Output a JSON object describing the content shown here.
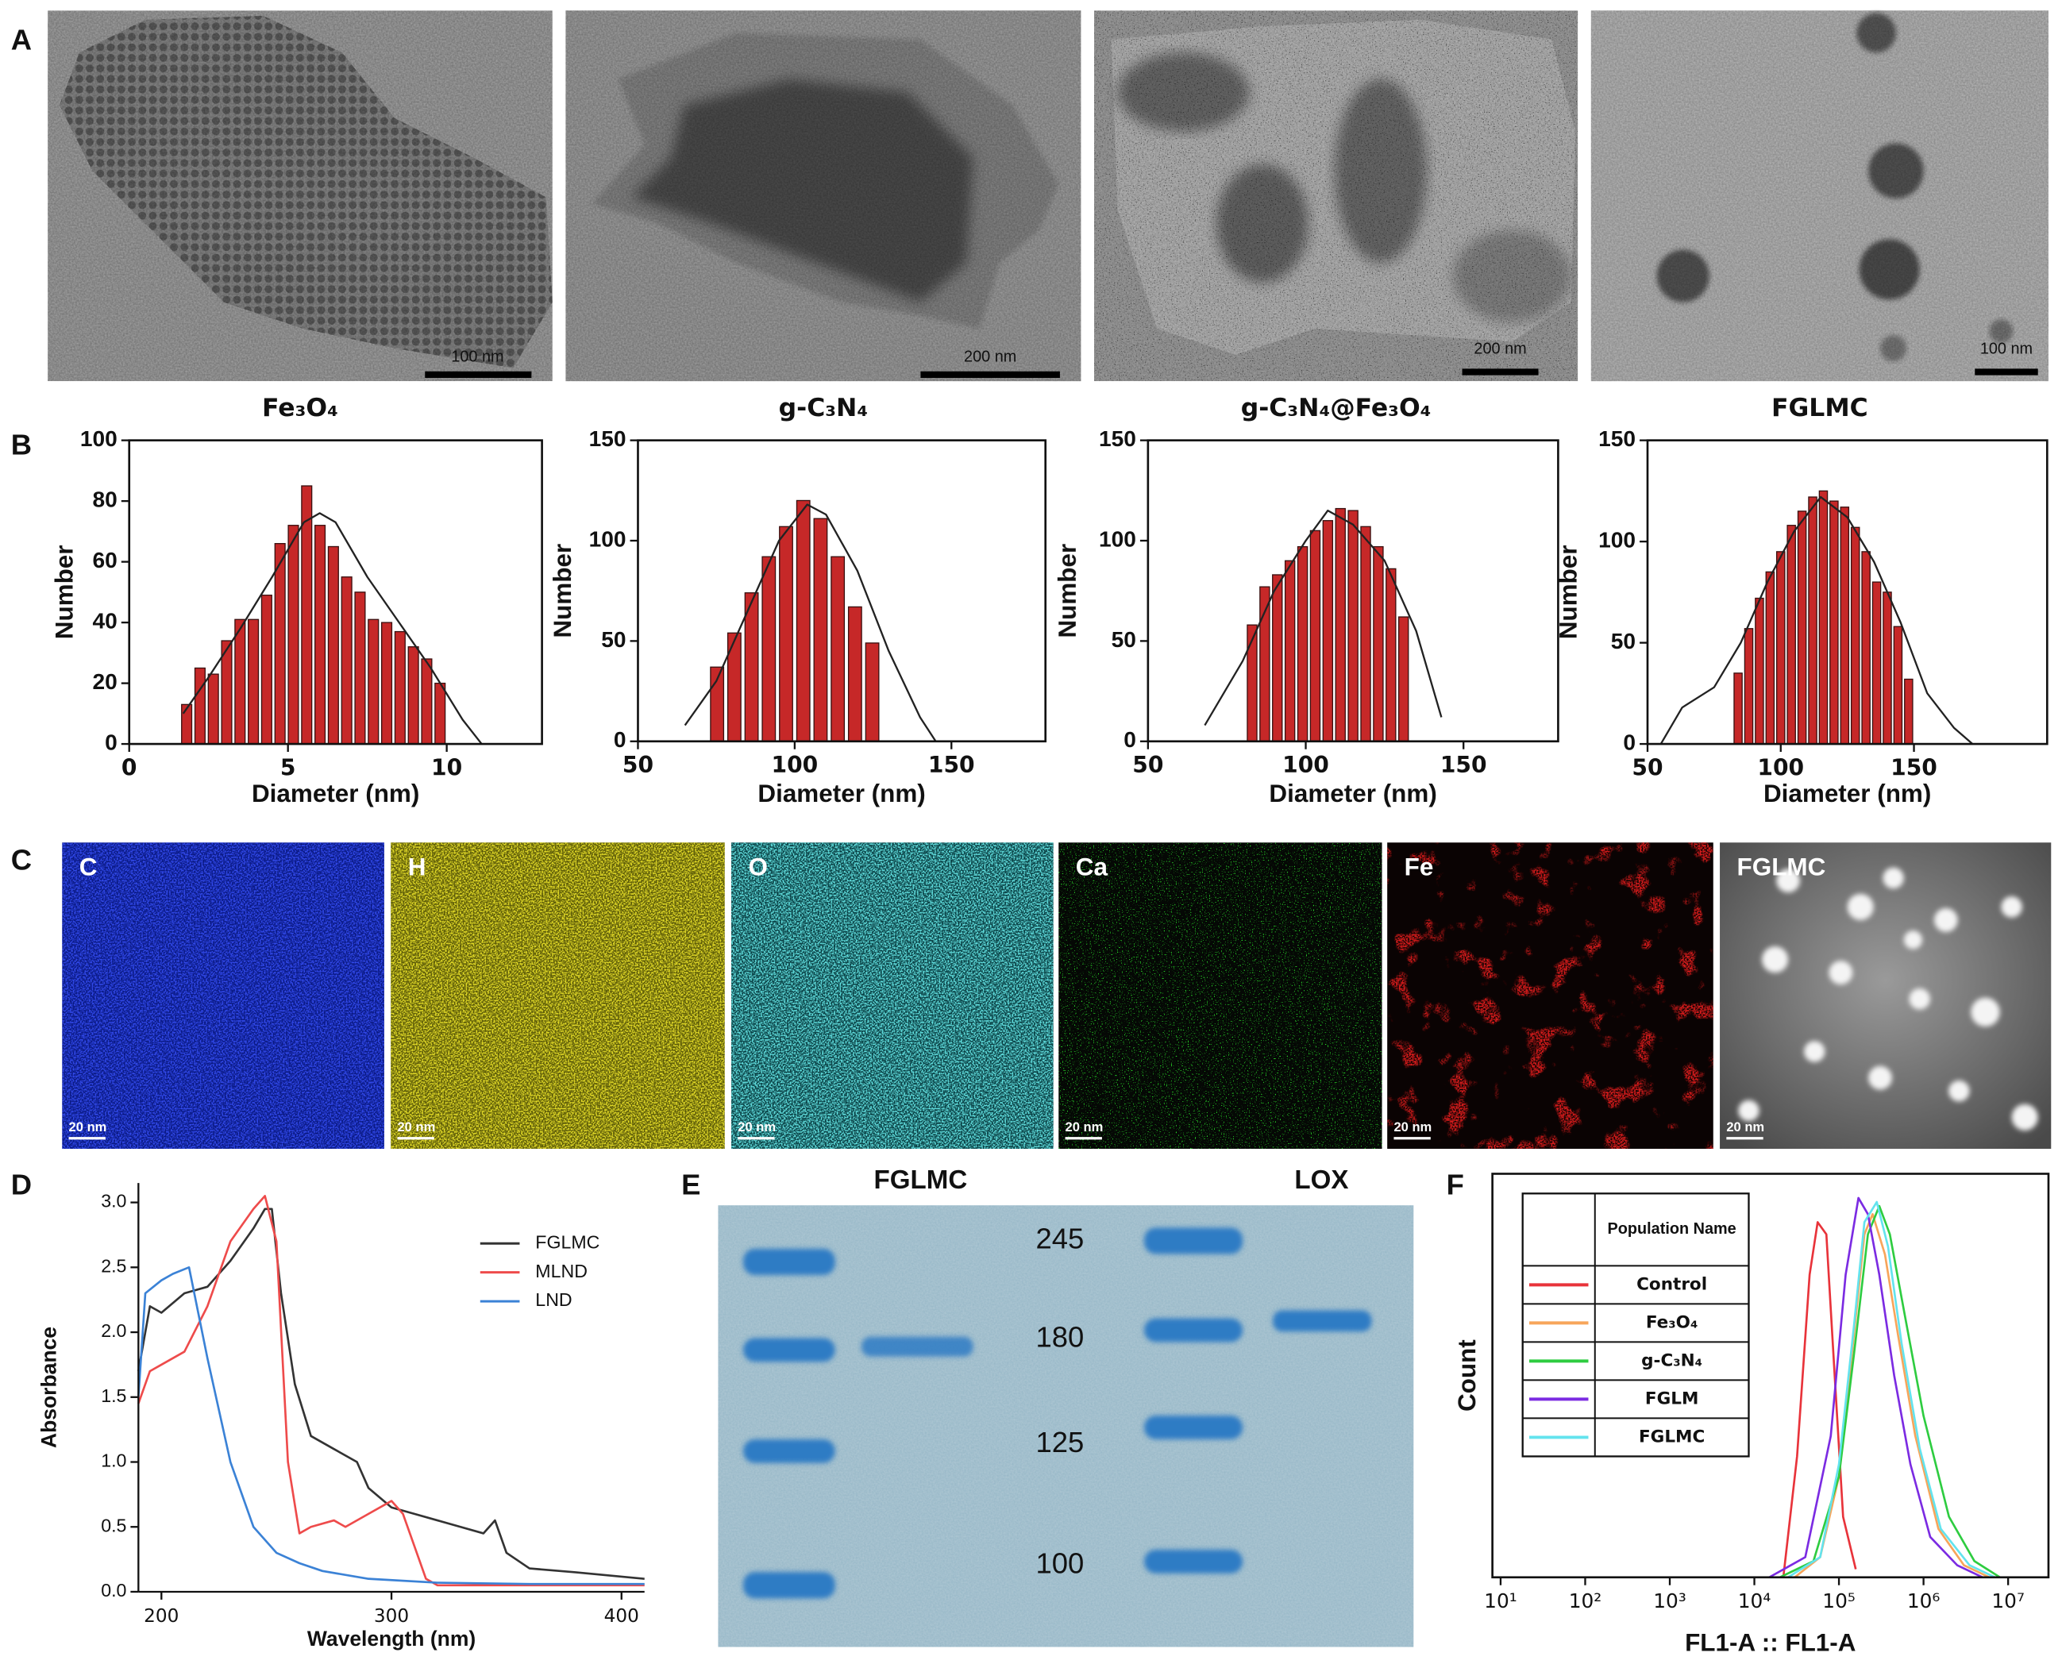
{
  "panel_labels": [
    "A",
    "B",
    "C",
    "D",
    "E",
    "F"
  ],
  "tem_images": [
    {
      "caption": "Fe₃O₄",
      "scale": "100 nm"
    },
    {
      "caption": "g-C₃N₄",
      "scale": "200 nm"
    },
    {
      "caption": "g-C₃N₄@Fe₃O₄",
      "scale": "200 nm"
    },
    {
      "caption": "FGLMC",
      "scale": "100 nm"
    }
  ],
  "eds_maps": [
    {
      "label": "C",
      "scale": "20 nm"
    },
    {
      "label": "H",
      "scale": "20 nm"
    },
    {
      "label": "O",
      "scale": "20 nm"
    },
    {
      "label": "Ca",
      "scale": "20 nm"
    },
    {
      "label": "Fe",
      "scale": "20 nm"
    },
    {
      "label": "FGLMC",
      "scale": "20 nm"
    }
  ],
  "gel": {
    "lanes": [
      "FGLMC",
      "LOX"
    ],
    "markers": [
      245,
      180,
      125,
      100
    ]
  },
  "chart_data": [
    {
      "type": "histogram",
      "xlabel": "Diameter (nm)",
      "ylabel": "Number",
      "color": "#c62828",
      "curve_color": "#222222",
      "bins": [
        1.6,
        2.02,
        2.44,
        2.86,
        3.28,
        3.7,
        4.12,
        4.54,
        4.96,
        5.38,
        5.8,
        6.22,
        6.64,
        7.06,
        7.48,
        7.9,
        8.32,
        8.74,
        9.16,
        9.58,
        10.0
      ],
      "values": [
        13,
        25,
        23,
        34,
        41,
        41,
        49,
        66,
        72,
        85,
        72,
        65,
        55,
        50,
        41,
        40,
        37,
        32,
        28,
        20
      ],
      "curve": {
        "x": [
          1.7,
          2.5,
          3.5,
          4.5,
          5.5,
          6,
          6.5,
          7.5,
          8.5,
          9.5,
          10.5,
          11.1
        ],
        "values": [
          10,
          22,
          38,
          55,
          73,
          76,
          73,
          55,
          40,
          25,
          8,
          0
        ]
      },
      "xlim": [
        0,
        13
      ],
      "xticks": [
        0,
        5,
        10
      ],
      "ylim": [
        0,
        100
      ],
      "yticks": [
        0,
        20,
        40,
        60,
        80,
        100
      ]
    },
    {
      "type": "histogram",
      "xlabel": "Diameter (nm)",
      "ylabel": "Number",
      "color": "#c62828",
      "curve_color": "#222222",
      "bins": [
        72.5,
        78,
        83.5,
        89,
        94.5,
        100,
        105.5,
        111,
        116.5,
        122,
        127.5
      ],
      "values": [
        37,
        54,
        74,
        92,
        107,
        120,
        111,
        92,
        67,
        49
      ],
      "curve": {
        "x": [
          65,
          75,
          85,
          95,
          104,
          110,
          120,
          130,
          140,
          145
        ],
        "values": [
          8,
          30,
          65,
          100,
          118,
          113,
          85,
          45,
          12,
          0
        ]
      },
      "xlim": [
        50,
        180
      ],
      "xticks": [
        50,
        100,
        150
      ],
      "ylim": [
        0,
        150
      ],
      "yticks": [
        0,
        50,
        100,
        150
      ]
    },
    {
      "type": "histogram",
      "xlabel": "Diameter (nm)",
      "ylabel": "Number",
      "color": "#c62828",
      "curve_color": "#222222",
      "bins": [
        81,
        85,
        89,
        93,
        97,
        101,
        105,
        109,
        113,
        117,
        121,
        125,
        129,
        133
      ],
      "values": [
        58,
        77,
        83,
        90,
        97,
        105,
        110,
        116,
        115,
        107,
        97,
        86,
        62
      ],
      "curve": {
        "x": [
          68,
          80,
          90,
          100,
          107,
          115,
          125,
          135,
          143
        ],
        "values": [
          8,
          40,
          75,
          100,
          115,
          108,
          90,
          55,
          12
        ]
      },
      "xlim": [
        50,
        180
      ],
      "xticks": [
        50,
        100,
        150
      ],
      "ylim": [
        0,
        150
      ],
      "yticks": [
        0,
        50,
        100,
        150
      ]
    },
    {
      "type": "histogram",
      "xlabel": "Diameter (nm)",
      "ylabel": "Number",
      "color": "#c62828",
      "curve_color": "#222222",
      "bins": [
        82,
        86,
        90,
        94,
        98,
        102,
        106,
        110,
        114,
        118,
        122,
        126,
        130,
        134,
        138,
        142,
        146,
        150
      ],
      "values": [
        35,
        57,
        72,
        85,
        95,
        108,
        115,
        122,
        125,
        120,
        117,
        107,
        95,
        80,
        75,
        58,
        32
      ],
      "curve": {
        "x": [
          55,
          63,
          75,
          85,
          95,
          105,
          115,
          125,
          135,
          145,
          155,
          165,
          172
        ],
        "values": [
          0,
          18,
          28,
          50,
          80,
          105,
          122,
          112,
          90,
          60,
          25,
          8,
          0
        ]
      },
      "xlim": [
        50,
        200
      ],
      "xticks": [
        50,
        100,
        150
      ],
      "ylim": [
        0,
        150
      ],
      "yticks": [
        0,
        50,
        100,
        150
      ]
    },
    {
      "type": "line",
      "xlabel": "Wavelength (nm)",
      "ylabel": "Absorbance",
      "legend": "upper right",
      "xlim": [
        190,
        410
      ],
      "xticks": [
        200,
        300,
        400
      ],
      "ylim": [
        0,
        3.15
      ],
      "yticks": [
        {
          "value": 0,
          "label": "0.0"
        },
        0.5,
        {
          "value": 1,
          "label": "1.0"
        },
        1.5,
        {
          "value": 2,
          "label": "2.0"
        },
        2.5,
        {
          "value": 3,
          "label": "3.0"
        }
      ],
      "series": [
        {
          "name": "FGLMC",
          "color": "#333333",
          "x": [
            190,
            195,
            200,
            210,
            220,
            230,
            240,
            245,
            248,
            252,
            258,
            265,
            275,
            285,
            290,
            300,
            310,
            320,
            330,
            340,
            345,
            350,
            360,
            380,
            410
          ],
          "values": [
            1.7,
            2.2,
            2.15,
            2.3,
            2.35,
            2.55,
            2.8,
            2.95,
            2.95,
            2.3,
            1.6,
            1.2,
            1.1,
            1.0,
            0.8,
            0.65,
            0.6,
            0.55,
            0.5,
            0.45,
            0.55,
            0.3,
            0.18,
            0.15,
            0.1
          ]
        },
        {
          "name": "MLND",
          "color": "#ee4b4b",
          "x": [
            190,
            195,
            200,
            210,
            220,
            230,
            240,
            245,
            250,
            255,
            260,
            265,
            275,
            280,
            290,
            300,
            305,
            315,
            320,
            330,
            410
          ],
          "values": [
            1.45,
            1.7,
            1.75,
            1.85,
            2.2,
            2.7,
            2.95,
            3.05,
            2.7,
            1.0,
            0.45,
            0.5,
            0.55,
            0.5,
            0.6,
            0.7,
            0.6,
            0.1,
            0.05,
            0.05,
            0.05
          ]
        },
        {
          "name": "LND",
          "color": "#3b82d6",
          "x": [
            190,
            193,
            200,
            205,
            212,
            220,
            230,
            235,
            240,
            250,
            260,
            270,
            290,
            320,
            360,
            410
          ],
          "values": [
            1.5,
            2.3,
            2.4,
            2.45,
            2.5,
            1.8,
            1.0,
            0.75,
            0.5,
            0.3,
            0.22,
            0.16,
            0.1,
            0.07,
            0.06,
            0.06
          ]
        }
      ]
    },
    {
      "type": "line",
      "log_x": true,
      "xlabel": "FL1-A :: FL1-A",
      "ylabel": "Count",
      "legend": "table",
      "legend_title": "Population Name",
      "xlim": [
        8,
        30000000
      ],
      "xticks": [
        {
          "value": 10,
          "label": "10¹"
        },
        {
          "value": 100,
          "label": "10²"
        },
        {
          "value": 1000,
          "label": "10³"
        },
        {
          "value": 10000,
          "label": "10⁴"
        },
        {
          "value": 100000,
          "label": "10⁵"
        },
        {
          "value": 1000000,
          "label": "10⁶"
        },
        {
          "value": 10000000,
          "label": "10⁷"
        }
      ],
      "ylim": [
        0,
        100
      ],
      "series": [
        {
          "name": "Control",
          "color": "#e8333a",
          "x": [
            22000,
            32000,
            45000,
            56000,
            71000,
            89000,
            112000,
            158000
          ],
          "values": [
            0,
            30,
            75,
            88,
            85,
            50,
            15,
            2
          ]
        },
        {
          "name": "Fe₃O₄",
          "color": "#f7a55a",
          "x": [
            30000,
            60000,
            100000,
            150000,
            200000,
            250000,
            350000,
            500000,
            800000,
            1500000,
            3000000,
            6000000
          ],
          "values": [
            0,
            5,
            25,
            60,
            85,
            90,
            80,
            60,
            35,
            12,
            3,
            0
          ]
        },
        {
          "name": "g-C₃N₄",
          "color": "#2ecc40",
          "x": [
            20000,
            50000,
            100000,
            150000,
            220000,
            300000,
            400000,
            600000,
            1000000,
            2000000,
            4000000,
            8000000
          ],
          "values": [
            0,
            4,
            25,
            55,
            85,
            92,
            85,
            65,
            40,
            15,
            4,
            0
          ]
        },
        {
          "name": "FGLM",
          "color": "#7b2be2",
          "x": [
            15000,
            40000,
            80000,
            120000,
            170000,
            220000,
            300000,
            450000,
            700000,
            1200000,
            2500000,
            5000000
          ],
          "values": [
            0,
            5,
            35,
            75,
            94,
            90,
            75,
            50,
            28,
            10,
            3,
            0
          ]
        },
        {
          "name": "FGLMC",
          "color": "#63e3ee",
          "x": [
            25000,
            60000,
            100000,
            150000,
            200000,
            280000,
            380000,
            550000,
            900000,
            1600000,
            3500000,
            7000000
          ],
          "values": [
            0,
            5,
            28,
            62,
            88,
            93,
            82,
            58,
            32,
            12,
            3,
            0
          ]
        }
      ]
    }
  ]
}
